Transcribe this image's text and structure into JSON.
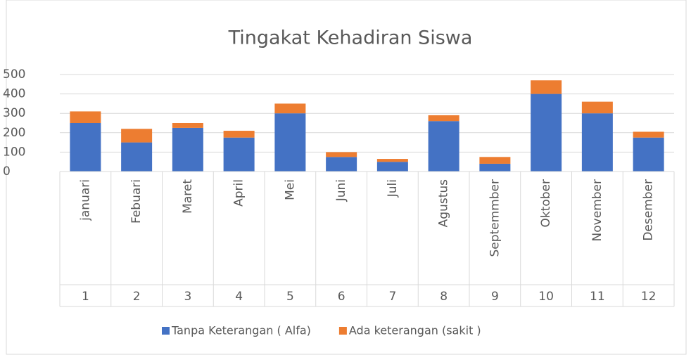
{
  "chart_data": {
    "type": "stacked_bar",
    "title": "Tingakat Kehadiran Siswa",
    "categories": [
      "januari",
      "Febuari",
      "Maret",
      "April",
      "Mei",
      "Juni",
      "Juli",
      "Agustus",
      "Septemmber",
      "Oktober",
      "November",
      "Desember"
    ],
    "category_numbers": [
      "1",
      "2",
      "3",
      "4",
      "5",
      "6",
      "7",
      "8",
      "9",
      "10",
      "11",
      "12"
    ],
    "series": [
      {
        "name": "Tanpa Keterangan ( Alfa)",
        "color": "#4472c4",
        "values": [
          250,
          150,
          225,
          175,
          300,
          75,
          50,
          260,
          40,
          400,
          300,
          175
        ]
      },
      {
        "name": "Ada keterangan (sakit )",
        "color": "#ed7d31",
        "values": [
          60,
          70,
          25,
          35,
          50,
          25,
          15,
          30,
          35,
          70,
          60,
          30
        ]
      }
    ],
    "ylim": [
      0,
      500
    ],
    "yticks": [
      0,
      100,
      200,
      300,
      400,
      500
    ],
    "grid": true,
    "legend": "bottom"
  }
}
